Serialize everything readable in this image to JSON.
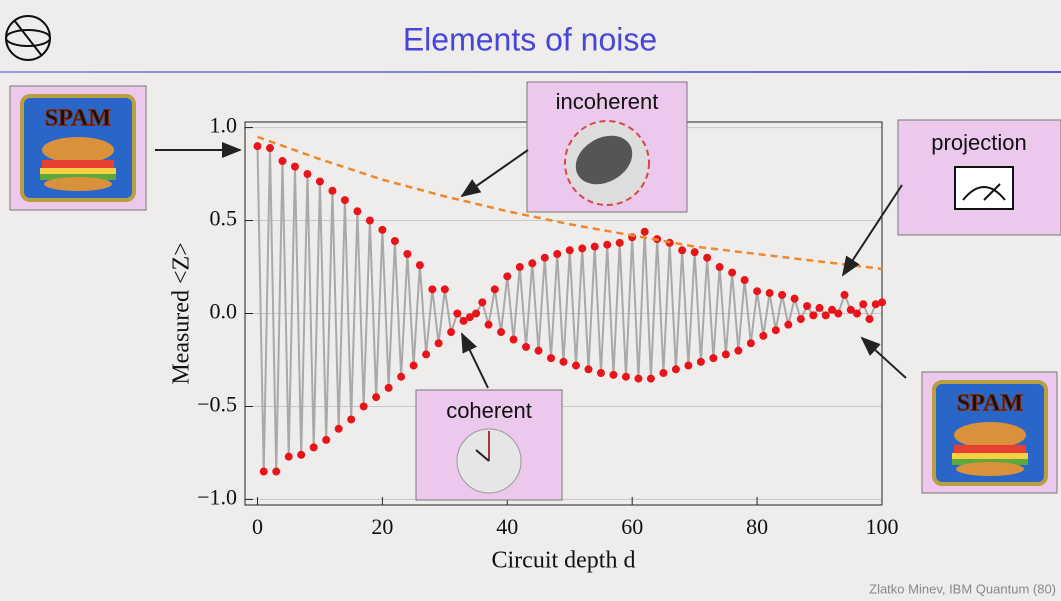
{
  "slide": {
    "title": "Elements of noise",
    "incoherent": "incoherent",
    "coherent": "coherent",
    "projection": "projection",
    "spam_left": "SPAM",
    "spam_right": "SPAM",
    "footer": "Zlatko Minev, IBM Quantum (80)"
  },
  "chart_data": {
    "type": "line",
    "y_label": "Measured <Z>",
    "x_label": "Circuit depth d",
    "xlim": [
      -2,
      100
    ],
    "ylim": [
      -1.03,
      1.03
    ],
    "xticks": [
      0,
      20,
      40,
      60,
      80,
      100
    ],
    "yticks": [
      {
        "value": -1,
        "label": "−1.0"
      },
      {
        "value": -0.5,
        "label": "−0.5"
      },
      {
        "value": 0,
        "label": "0.0"
      },
      {
        "value": 0.5,
        "label": "0.5"
      },
      {
        "value": 1,
        "label": "1.0"
      }
    ],
    "grid": true,
    "x": [
      0,
      1,
      2,
      3,
      4,
      5,
      6,
      7,
      8,
      9,
      10,
      11,
      12,
      13,
      14,
      15,
      16,
      17,
      18,
      19,
      20,
      21,
      22,
      23,
      24,
      25,
      26,
      27,
      28,
      29,
      30,
      31,
      32,
      33,
      34,
      35,
      36,
      37,
      38,
      39,
      40,
      41,
      42,
      43,
      44,
      45,
      46,
      47,
      48,
      49,
      50,
      51,
      52,
      53,
      54,
      55,
      56,
      57,
      58,
      59,
      60,
      61,
      62,
      63,
      64,
      65,
      66,
      67,
      68,
      69,
      70,
      71,
      72,
      73,
      74,
      75,
      76,
      77,
      78,
      79,
      80,
      81,
      82,
      83,
      84,
      85,
      86,
      87,
      88,
      89,
      90,
      91,
      92,
      93,
      94,
      95,
      96,
      97,
      98,
      99,
      100
    ],
    "series": [
      {
        "color": "#a9a9a9",
        "marker_color": "#e8141a",
        "values": [
          0.9,
          -0.85,
          0.89,
          -0.85,
          0.82,
          -0.77,
          0.79,
          -0.76,
          0.75,
          -0.72,
          0.71,
          -0.68,
          0.66,
          -0.62,
          0.61,
          -0.57,
          0.55,
          -0.5,
          0.5,
          -0.45,
          0.45,
          -0.4,
          0.39,
          -0.34,
          0.32,
          -0.28,
          0.26,
          -0.22,
          0.13,
          -0.16,
          0.13,
          -0.1,
          0.0,
          -0.04,
          -0.02,
          0.0,
          0.06,
          -0.06,
          0.13,
          -0.1,
          0.2,
          -0.14,
          0.25,
          -0.18,
          0.27,
          -0.2,
          0.3,
          -0.24,
          0.32,
          -0.26,
          0.34,
          -0.28,
          0.35,
          -0.3,
          0.36,
          -0.32,
          0.37,
          -0.33,
          0.38,
          -0.34,
          0.41,
          -0.35,
          0.44,
          -0.35,
          0.4,
          -0.32,
          0.38,
          -0.3,
          0.34,
          -0.28,
          0.33,
          -0.26,
          0.3,
          -0.24,
          0.25,
          -0.22,
          0.22,
          -0.2,
          0.18,
          -0.16,
          0.12,
          -0.12,
          0.11,
          -0.09,
          0.1,
          -0.06,
          0.08,
          -0.03,
          0.04,
          -0.01,
          0.03,
          -0.01,
          0.02,
          0.0,
          0.1,
          0.02,
          0.0,
          0.05,
          -0.03,
          0.05,
          0.06
        ]
      },
      {
        "color": "#f0872d",
        "dashed": true,
        "x": [
          0,
          10,
          20,
          30,
          40,
          50,
          60,
          70,
          80,
          90,
          100
        ],
        "values": [
          0.95,
          0.83,
          0.72,
          0.63,
          0.55,
          0.48,
          0.42,
          0.36,
          0.32,
          0.28,
          0.24
        ]
      }
    ]
  }
}
